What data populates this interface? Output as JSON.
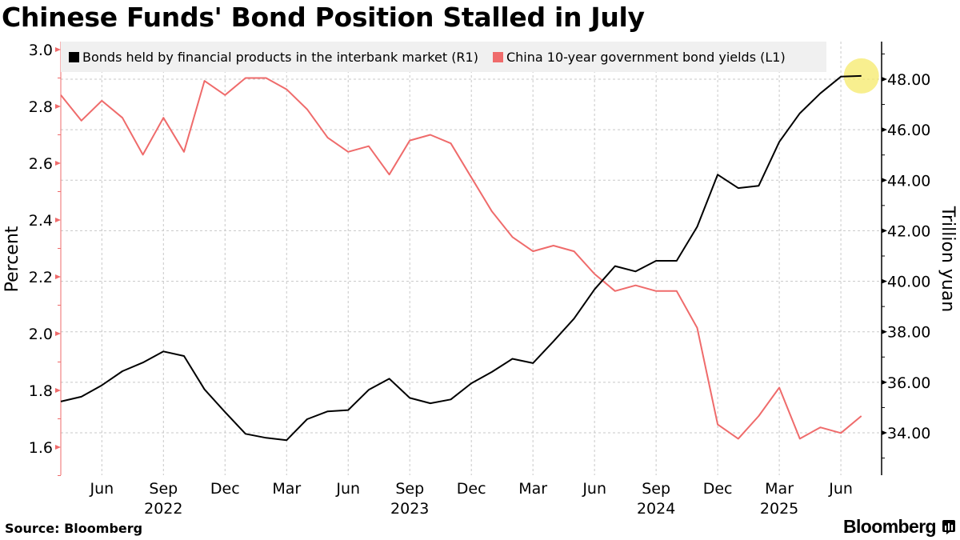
{
  "title": "Chinese Funds' Bond Position Stalled in July",
  "source": "Source: Bloomberg",
  "brand": "Bloomberg",
  "brand_icon": "bloomberg-chart-icon",
  "colors": {
    "bonds_line": "#000000",
    "yield_line": "#ef6b6b",
    "highlight": "#f5ea6a",
    "legend_bg": "#f0f0f0",
    "grid": "#c8c8c8"
  },
  "chart_data": {
    "type": "line",
    "title": "Chinese Funds' Bond Position Stalled in July",
    "x": [
      "2022-04",
      "2022-05",
      "2022-06",
      "2022-07",
      "2022-08",
      "2022-09",
      "2022-10",
      "2022-11",
      "2022-12",
      "2023-01",
      "2023-02",
      "2023-03",
      "2023-04",
      "2023-05",
      "2023-06",
      "2023-07",
      "2023-08",
      "2023-09",
      "2023-10",
      "2023-11",
      "2023-12",
      "2024-01",
      "2024-02",
      "2024-03",
      "2024-04",
      "2024-05",
      "2024-06",
      "2024-07",
      "2024-08",
      "2024-09",
      "2024-10",
      "2024-11",
      "2024-12",
      "2025-01",
      "2025-02",
      "2025-03",
      "2025-04",
      "2025-05",
      "2025-06",
      "2025-07"
    ],
    "series": [
      {
        "name": "Bonds held by financial products in the interbank market (R1)",
        "axis": "right",
        "values": [
          35.24,
          35.43,
          35.88,
          36.44,
          36.78,
          37.22,
          37.04,
          35.72,
          34.82,
          33.96,
          33.8,
          33.71,
          34.54,
          34.85,
          34.9,
          35.7,
          36.14,
          35.38,
          35.17,
          35.32,
          35.96,
          36.41,
          36.93,
          36.76,
          37.62,
          38.52,
          39.68,
          40.6,
          40.39,
          40.81,
          40.81,
          42.16,
          44.22,
          43.69,
          43.78,
          45.52,
          46.65,
          47.44,
          48.1,
          48.13
        ]
      },
      {
        "name": "China 10-year government bond yields (L1)",
        "axis": "left",
        "values": [
          2.84,
          2.75,
          2.82,
          2.76,
          2.63,
          2.76,
          2.64,
          2.89,
          2.84,
          2.9,
          2.9,
          2.86,
          2.79,
          2.69,
          2.64,
          2.66,
          2.56,
          2.68,
          2.7,
          2.67,
          2.55,
          2.43,
          2.34,
          2.29,
          2.31,
          2.29,
          2.21,
          2.15,
          2.17,
          2.15,
          2.15,
          2.02,
          1.68,
          1.63,
          1.71,
          1.81,
          1.63,
          1.67,
          1.65,
          1.71
        ]
      }
    ],
    "x_tick_labels": [
      {
        "month": "2022-06",
        "label": "Jun"
      },
      {
        "month": "2022-09",
        "label": "Sep"
      },
      {
        "month": "2022-12",
        "label": "Dec"
      },
      {
        "month": "2023-03",
        "label": "Mar"
      },
      {
        "month": "2023-06",
        "label": "Jun"
      },
      {
        "month": "2023-09",
        "label": "Sep"
      },
      {
        "month": "2023-12",
        "label": "Dec"
      },
      {
        "month": "2024-03",
        "label": "Mar"
      },
      {
        "month": "2024-06",
        "label": "Jun"
      },
      {
        "month": "2024-09",
        "label": "Sep"
      },
      {
        "month": "2024-12",
        "label": "Dec"
      },
      {
        "month": "2025-03",
        "label": "Mar"
      },
      {
        "month": "2025-06",
        "label": "Jun"
      }
    ],
    "x_year_labels": [
      {
        "month": "2022-09",
        "label": "2022"
      },
      {
        "month": "2023-09",
        "label": "2023"
      },
      {
        "month": "2024-09",
        "label": "2024"
      },
      {
        "month": "2025-03",
        "label": "2025"
      }
    ],
    "left_axis": {
      "label": "Percent",
      "ylim": [
        1.5,
        3.03
      ],
      "ticks": [
        1.6,
        1.8,
        2.0,
        2.2,
        2.4,
        2.6,
        2.8,
        3.0
      ],
      "tick_labels": [
        "1.6",
        "1.8",
        "2.0",
        "2.2",
        "2.4",
        "2.6",
        "2.8",
        "3.0"
      ]
    },
    "right_axis": {
      "label": "Trillion yuan",
      "ylim": [
        32.2,
        49.5
      ],
      "ticks": [
        34,
        36,
        38,
        40,
        42,
        44,
        46,
        48
      ],
      "tick_labels": [
        "34.00",
        "36.00",
        "38.00",
        "40.00",
        "42.00",
        "44.00",
        "46.00",
        "48.00"
      ]
    },
    "grid": true,
    "legend_position": "top",
    "highlight_point": {
      "series": 0,
      "month": "2025-07"
    }
  },
  "legend": [
    {
      "label": "Bonds held by financial products in the interbank market (R1)",
      "color": "#000000"
    },
    {
      "label": "China 10-year government bond yields (L1)",
      "color": "#ef6b6b"
    }
  ]
}
